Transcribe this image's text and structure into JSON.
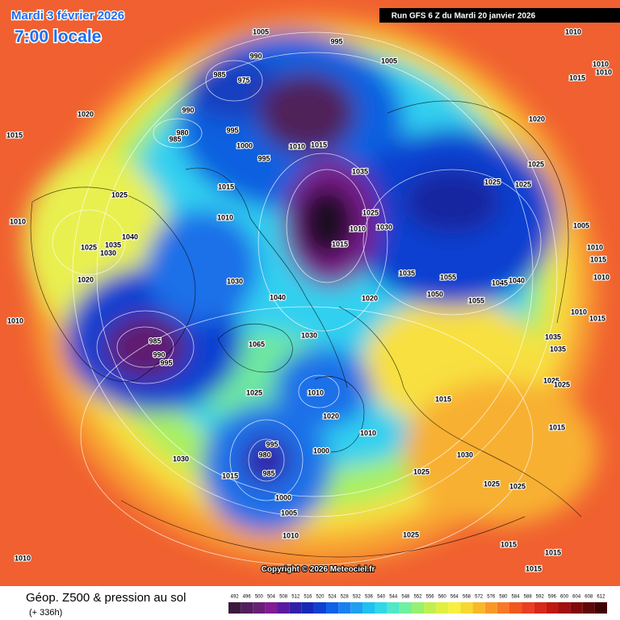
{
  "header": {
    "title": "Mardi 3 février 2026",
    "time": "7:00 locale",
    "run": "Run GFS 6 Z du Mardi 20 janvier 2026"
  },
  "map": {
    "isobar_labels": [
      1005,
      995,
      990,
      1005,
      985,
      975,
      1010,
      1010,
      1010,
      1015,
      990,
      1020,
      1020,
      980,
      985,
      995,
      1015,
      1000,
      995,
      1010,
      1015,
      1035,
      1025,
      1025,
      1025,
      1025,
      1015,
      1025,
      1010,
      1030,
      1010,
      1010,
      1005,
      1040,
      1025,
      1035,
      1030,
      1015,
      1010,
      1015,
      1020,
      1030,
      1035,
      1055,
      1045,
      1040,
      1010,
      1040,
      1020,
      1050,
      1055,
      1010,
      1015,
      1010,
      985,
      990,
      995,
      1030,
      1065,
      1035,
      1035,
      1025,
      1025,
      1025,
      1010,
      1015,
      1020,
      1015,
      1010,
      995,
      980,
      1000,
      1030,
      1030,
      1015,
      985,
      1025,
      1025,
      1025,
      1000,
      1005,
      1010,
      1025,
      1015,
      1015,
      1015,
      1010
    ],
    "copyright": "Copyright © 2026 Meteociel.fr"
  },
  "footer": {
    "field": "Géop. Z500 & pression au sol",
    "lead": "(+ 336h)"
  },
  "scale": {
    "values": [
      492,
      496,
      500,
      504,
      508,
      512,
      516,
      520,
      524,
      528,
      532,
      536,
      540,
      544,
      548,
      552,
      556,
      560,
      564,
      568,
      572,
      576,
      580,
      584,
      588,
      592,
      596,
      600,
      604,
      608,
      612
    ],
    "colors": [
      "#3a1a3a",
      "#50205a",
      "#6a1e78",
      "#821c94",
      "#5a1aa0",
      "#3020a8",
      "#1828b8",
      "#1040d0",
      "#1060e8",
      "#1a80f0",
      "#20a0f0",
      "#20c0f0",
      "#30d8e8",
      "#50e8c8",
      "#70f0a0",
      "#98f070",
      "#c0f050",
      "#e0f040",
      "#f8f040",
      "#f8d830",
      "#f8b828",
      "#f89828",
      "#f87828",
      "#f05820",
      "#e84020",
      "#d82818",
      "#c01810",
      "#a01010",
      "#800a0a",
      "#600808",
      "#400404"
    ]
  }
}
